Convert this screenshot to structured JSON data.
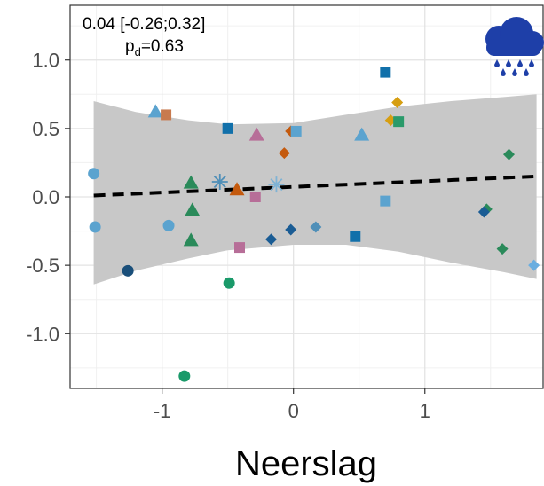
{
  "chart_data": {
    "type": "scatter",
    "title": "",
    "xlabel": "Neerslag",
    "ylabel": "",
    "xlim": [
      -1.7,
      1.9
    ],
    "ylim": [
      -1.4,
      1.4
    ],
    "x_ticks": [
      -1,
      0,
      1
    ],
    "x_tick_labels": [
      "-1",
      "0",
      "1"
    ],
    "y_ticks": [
      -1.0,
      -0.5,
      0.0,
      0.5,
      1.0
    ],
    "y_tick_labels": [
      "-1.0",
      "-0.5",
      "0.0",
      "0.5",
      "1.0"
    ],
    "grid": true,
    "annotation": {
      "estimate": "0.04 [-0.26;0.32]",
      "pd_prefix": "p",
      "pd_sub": "d",
      "pd_value": "=0.63"
    },
    "icon": "rain-cloud-icon",
    "fit_line": {
      "style": "dashed",
      "color": "#000000",
      "points": [
        [
          -1.52,
          0.01
        ],
        [
          1.85,
          0.15
        ]
      ]
    },
    "ci_band": {
      "color": "#c8c8c8",
      "upper": [
        [
          -1.52,
          0.7
        ],
        [
          -1.2,
          0.62
        ],
        [
          -0.8,
          0.56
        ],
        [
          -0.5,
          0.53
        ],
        [
          0.0,
          0.54
        ],
        [
          0.4,
          0.6
        ],
        [
          0.8,
          0.66
        ],
        [
          1.2,
          0.7
        ],
        [
          1.6,
          0.73
        ],
        [
          1.85,
          0.75
        ]
      ],
      "lower": [
        [
          -1.52,
          -0.64
        ],
        [
          -1.2,
          -0.54
        ],
        [
          -0.8,
          -0.45
        ],
        [
          -0.5,
          -0.39
        ],
        [
          0.0,
          -0.35
        ],
        [
          0.4,
          -0.35
        ],
        [
          0.8,
          -0.4
        ],
        [
          1.2,
          -0.48
        ],
        [
          1.6,
          -0.55
        ],
        [
          1.85,
          -0.6
        ]
      ]
    },
    "points": [
      {
        "x": 0.7,
        "y": 0.91,
        "shape": "square",
        "color": "#1170aa"
      },
      {
        "x": 0.79,
        "y": 0.69,
        "shape": "diamond",
        "color": "#d69e11"
      },
      {
        "x": 0.74,
        "y": 0.56,
        "shape": "diamond",
        "color": "#d69e11"
      },
      {
        "x": 0.8,
        "y": 0.55,
        "shape": "square",
        "color": "#2a9a6a"
      },
      {
        "x": -1.05,
        "y": 0.62,
        "shape": "triangle",
        "color": "#5ba3cf"
      },
      {
        "x": -0.97,
        "y": 0.6,
        "shape": "square",
        "color": "#c87a4e"
      },
      {
        "x": -0.5,
        "y": 0.5,
        "shape": "square",
        "color": "#1170aa"
      },
      {
        "x": -0.28,
        "y": 0.45,
        "shape": "triangle",
        "color": "#b76e98"
      },
      {
        "x": -0.02,
        "y": 0.48,
        "shape": "diamond",
        "color": "#c45a0e"
      },
      {
        "x": 0.02,
        "y": 0.48,
        "shape": "square",
        "color": "#5ba3cf"
      },
      {
        "x": 0.52,
        "y": 0.45,
        "shape": "triangle",
        "color": "#5ba3cf"
      },
      {
        "x": -0.07,
        "y": 0.32,
        "shape": "diamond",
        "color": "#c45a0e"
      },
      {
        "x": 1.64,
        "y": 0.31,
        "shape": "diamond",
        "color": "#2a8a5a"
      },
      {
        "x": -1.52,
        "y": 0.17,
        "shape": "circle",
        "color": "#5ba3cf"
      },
      {
        "x": -0.78,
        "y": 0.1,
        "shape": "triangle",
        "color": "#2a8a5a"
      },
      {
        "x": -0.56,
        "y": 0.11,
        "shape": "star",
        "color": "#4f8fb8"
      },
      {
        "x": -0.43,
        "y": 0.05,
        "shape": "triangle",
        "color": "#c45a0e"
      },
      {
        "x": -0.13,
        "y": 0.09,
        "shape": "star",
        "color": "#7fb3d5"
      },
      {
        "x": -0.29,
        "y": 0.0,
        "shape": "square",
        "color": "#b76e98"
      },
      {
        "x": 0.7,
        "y": -0.03,
        "shape": "square",
        "color": "#5ba3cf"
      },
      {
        "x": -0.77,
        "y": -0.1,
        "shape": "triangle",
        "color": "#2a8a5a"
      },
      {
        "x": 1.47,
        "y": -0.09,
        "shape": "diamond",
        "color": "#2a8a5a"
      },
      {
        "x": 1.45,
        "y": -0.11,
        "shape": "diamond",
        "color": "#1a5c94"
      },
      {
        "x": -1.51,
        "y": -0.22,
        "shape": "circle",
        "color": "#5ba3cf"
      },
      {
        "x": -0.95,
        "y": -0.21,
        "shape": "circle",
        "color": "#5ba3cf"
      },
      {
        "x": -0.02,
        "y": -0.24,
        "shape": "diamond",
        "color": "#1a5c94"
      },
      {
        "x": 0.17,
        "y": -0.22,
        "shape": "diamond",
        "color": "#4f8fb8"
      },
      {
        "x": -0.17,
        "y": -0.31,
        "shape": "diamond",
        "color": "#1a5c94"
      },
      {
        "x": 0.47,
        "y": -0.29,
        "shape": "square",
        "color": "#1170aa"
      },
      {
        "x": -0.78,
        "y": -0.32,
        "shape": "triangle",
        "color": "#2a8a5a"
      },
      {
        "x": -0.41,
        "y": -0.37,
        "shape": "square",
        "color": "#b76e98"
      },
      {
        "x": 1.59,
        "y": -0.38,
        "shape": "diamond",
        "color": "#2a8a5a"
      },
      {
        "x": 1.83,
        "y": -0.5,
        "shape": "diamond",
        "color": "#6aaee0"
      },
      {
        "x": -1.26,
        "y": -0.54,
        "shape": "circle",
        "color": "#1a4f7a"
      },
      {
        "x": -0.49,
        "y": -0.63,
        "shape": "circle",
        "color": "#1a9a6a"
      },
      {
        "x": -0.83,
        "y": -1.31,
        "shape": "circle",
        "color": "#1a9a6a"
      }
    ]
  }
}
